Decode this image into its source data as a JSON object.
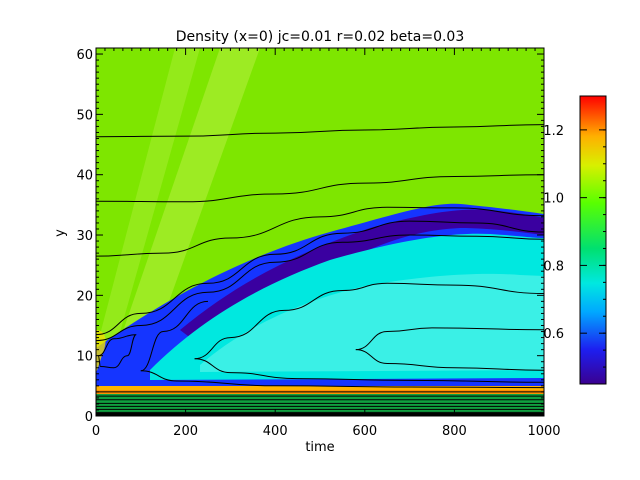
{
  "chart_data": {
    "type": "heatmap",
    "title": "Density (x=0) jc=0.01 r=0.02 beta=0.03",
    "xlabel": "time",
    "ylabel": "y",
    "xlim": [
      0,
      1000
    ],
    "ylim": [
      0,
      61
    ],
    "xticks": [
      0,
      200,
      400,
      600,
      800,
      1000
    ],
    "yticks": [
      0,
      10,
      20,
      30,
      40,
      50,
      60
    ],
    "colorbar": {
      "vmin": 0.45,
      "vmax": 1.3,
      "ticks": [
        "0.6",
        "0.8",
        "1.0",
        "1.2"
      ],
      "tick_values": [
        0.6,
        0.8,
        1.0,
        1.2
      ],
      "colormap": "rainbow"
    },
    "features": {
      "background_level": 1.0,
      "low_density_band": {
        "description": "arched depleted region",
        "min_value": 0.45,
        "core_peak_y": 32,
        "core_peak_time": 700
      },
      "interior_level": 0.72,
      "high_density_floor": {
        "y_range": [
          2,
          5
        ],
        "max_value": 1.2
      }
    },
    "contours": [
      {
        "label": "c1",
        "points": [
          [
            0,
            46.3
          ],
          [
            200,
            46.4
          ],
          [
            400,
            46.9
          ],
          [
            600,
            47.4
          ],
          [
            800,
            47.9
          ],
          [
            1000,
            48.3
          ]
        ]
      },
      {
        "label": "c2",
        "points": [
          [
            0,
            35.6
          ],
          [
            200,
            35.5
          ],
          [
            400,
            36.8
          ],
          [
            600,
            38.6
          ],
          [
            800,
            39.7
          ],
          [
            1000,
            40.0
          ]
        ]
      },
      {
        "label": "c3",
        "points": [
          [
            0,
            26.5
          ],
          [
            150,
            27.0
          ],
          [
            300,
            29.5
          ],
          [
            500,
            33.0
          ],
          [
            650,
            34.6
          ],
          [
            800,
            34.5
          ],
          [
            1000,
            33.2
          ]
        ]
      },
      {
        "label": "c4",
        "points": [
          [
            0,
            13.5
          ],
          [
            100,
            17.0
          ],
          [
            250,
            22.0
          ],
          [
            400,
            26.8
          ],
          [
            550,
            30.3
          ],
          [
            700,
            32.3
          ],
          [
            850,
            32.0
          ],
          [
            1000,
            30.5
          ]
        ]
      },
      {
        "label": "c5",
        "points": [
          [
            0,
            12.5
          ],
          [
            100,
            15.0
          ],
          [
            250,
            20.5
          ],
          [
            400,
            25.5
          ],
          [
            550,
            28.8
          ],
          [
            700,
            30.0
          ],
          [
            850,
            29.8
          ],
          [
            1000,
            29.3
          ]
        ]
      },
      {
        "label": "c6",
        "points": [
          [
            220,
            9.5
          ],
          [
            300,
            13.0
          ],
          [
            420,
            17.5
          ],
          [
            550,
            20.8
          ],
          [
            650,
            22.0
          ],
          [
            800,
            21.7
          ],
          [
            1000,
            20.3
          ]
        ]
      },
      {
        "label": "c7",
        "points": [
          [
            580,
            11.0
          ],
          [
            650,
            14.0
          ],
          [
            750,
            14.6
          ],
          [
            1000,
            14.3
          ]
        ]
      },
      {
        "label": "c8",
        "points": [
          [
            580,
            11.0
          ],
          [
            650,
            8.7
          ],
          [
            800,
            8.0
          ],
          [
            1000,
            7.6
          ]
        ]
      },
      {
        "label": "c9",
        "points": [
          [
            220,
            9.5
          ],
          [
            300,
            7.2
          ],
          [
            450,
            6.2
          ],
          [
            700,
            5.9
          ],
          [
            1000,
            5.6
          ]
        ]
      },
      {
        "label": "c10",
        "points": [
          [
            100,
            7.5
          ],
          [
            150,
            14.0
          ],
          [
            250,
            19.0
          ]
        ]
      },
      {
        "label": "c11",
        "points": [
          [
            100,
            7.5
          ],
          [
            180,
            5.8
          ],
          [
            400,
            5.0
          ],
          [
            700,
            4.8
          ],
          [
            1000,
            4.7
          ]
        ]
      },
      {
        "label": "c12",
        "points": [
          [
            5,
            10.0
          ],
          [
            40,
            12.8
          ],
          [
            90,
            13.5
          ],
          [
            70,
            10.0
          ],
          [
            40,
            8.0
          ],
          [
            10,
            8.2
          ],
          [
            5,
            10.0
          ]
        ]
      }
    ],
    "floor_lines": [
      4.0,
      3.3,
      2.7,
      2.1,
      1.6,
      1.1,
      0.6
    ]
  }
}
